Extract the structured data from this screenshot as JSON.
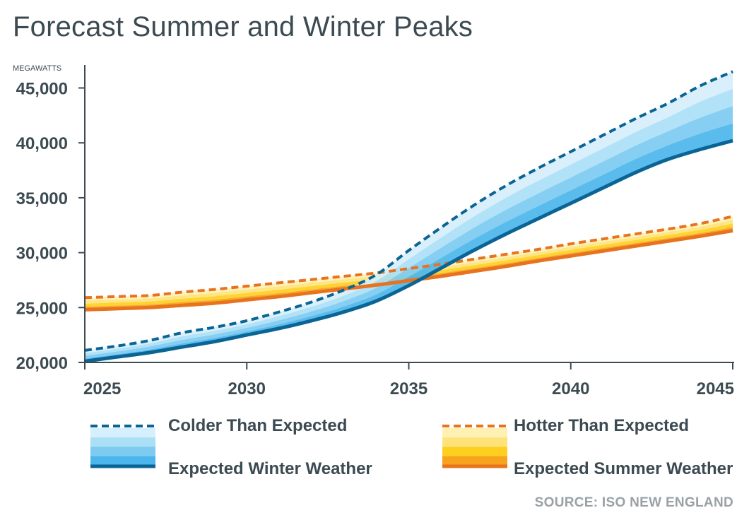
{
  "chart_data": {
    "type": "area",
    "title": "Forecast Summer and Winter Peaks",
    "ylabel": "MEGAWATTS",
    "source": "SOURCE: ISO NEW ENGLAND",
    "xlim": [
      2025,
      2045
    ],
    "ylim": [
      20000,
      46500
    ],
    "x_ticks": [
      2025,
      2030,
      2035,
      2040,
      2045
    ],
    "y_ticks": [
      20000,
      25000,
      30000,
      35000,
      40000,
      45000
    ],
    "x_tick_labels": [
      "2025",
      "2030",
      "2035",
      "2040",
      "2045"
    ],
    "y_tick_labels": [
      "20,000",
      "25,000",
      "30,000",
      "35,000",
      "40,000",
      "45,000"
    ],
    "x": [
      2025,
      2026,
      2027,
      2028,
      2029,
      2030,
      2031,
      2032,
      2033,
      2034,
      2035,
      2036,
      2037,
      2038,
      2039,
      2040,
      2041,
      2042,
      2043,
      2044,
      2045
    ],
    "series": [
      {
        "name": "Expected Winter Weather",
        "style": "solid",
        "color": "#0a6494",
        "values": [
          20100,
          20500,
          20900,
          21400,
          21900,
          22500,
          23100,
          23800,
          24600,
          25600,
          27000,
          28600,
          30200,
          31700,
          33100,
          34500,
          35900,
          37300,
          38500,
          39400,
          40200
        ]
      },
      {
        "name": "Colder Than Expected",
        "style": "dashed",
        "color": "#0a6494",
        "values": [
          21100,
          21500,
          22000,
          22700,
          23200,
          23800,
          24600,
          25500,
          26600,
          28000,
          30200,
          32300,
          34300,
          36100,
          37700,
          39200,
          40700,
          42200,
          43600,
          45200,
          46500
        ]
      },
      {
        "name": "Expected Summer Weather",
        "style": "solid",
        "color": "#e8731e",
        "values": [
          24800,
          24900,
          25000,
          25200,
          25400,
          25700,
          26000,
          26350,
          26700,
          27050,
          27450,
          27850,
          28300,
          28750,
          29250,
          29700,
          30150,
          30600,
          31050,
          31500,
          32000
        ]
      },
      {
        "name": "Hotter Than Expected",
        "style": "dashed",
        "color": "#e8731e",
        "values": [
          25900,
          26000,
          26100,
          26400,
          26650,
          26950,
          27250,
          27550,
          27850,
          28150,
          28550,
          28950,
          29400,
          29850,
          30300,
          30800,
          31250,
          31700,
          32150,
          32650,
          33300
        ]
      }
    ],
    "winter_band_colors": [
      "#d6effc",
      "#aadff6",
      "#7dcbf1",
      "#4cb6ec"
    ],
    "summer_band_colors": [
      "#fff1b3",
      "#ffe37a",
      "#ffcf1f",
      "#f7a31e"
    ],
    "legend": [
      {
        "label": "Colder Than Expected"
      },
      {
        "label": "Expected Winter Weather"
      },
      {
        "label": "Hotter Than Expected"
      },
      {
        "label": "Expected Summer Weather"
      }
    ]
  }
}
